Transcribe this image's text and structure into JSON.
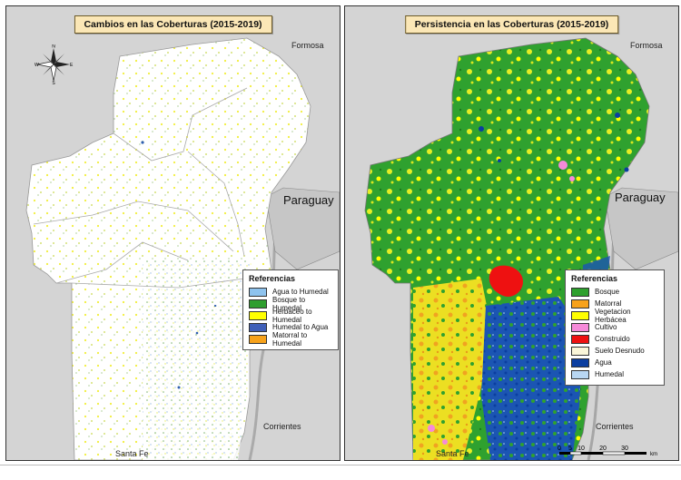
{
  "left_map": {
    "title": "Cambios en las Coberturas (2015-2019)",
    "places": {
      "formosa": "Formosa",
      "paraguay": "Paraguay",
      "corrientes": "Corrientes",
      "santa_fe": "Santa Fe"
    },
    "compass": {
      "n": "N",
      "s": "S",
      "e": "E",
      "w": "W"
    },
    "legend": {
      "title": "Referencias",
      "items": [
        {
          "label": "Agua to Humedal",
          "color": "#8ec3ee"
        },
        {
          "label": "Bosque to Humedal",
          "color": "#2e9e2e"
        },
        {
          "label": "Herbaceo to Humedal",
          "color": "#ffff00"
        },
        {
          "label": "Humedal to Agua",
          "color": "#4060b8"
        },
        {
          "label": "Matorral to Humedal",
          "color": "#f7a21b"
        }
      ]
    }
  },
  "right_map": {
    "title": "Persistencia en las Coberturas (2015-2019)",
    "places": {
      "formosa": "Formosa",
      "paraguay": "Paraguay",
      "corrientes": "Corrientes",
      "santa_fe": "Santa Fe"
    },
    "legend": {
      "title": "Referencias",
      "items": [
        {
          "label": "Bosque",
          "color": "#2ea02e"
        },
        {
          "label": "Matorral",
          "color": "#f7a21b"
        },
        {
          "label": "Vegetacion Herbácea",
          "color": "#ffff00"
        },
        {
          "label": "Cultivo",
          "color": "#f58ad9"
        },
        {
          "label": "Construido",
          "color": "#ee1111"
        },
        {
          "label": "Suelo Desnudo",
          "color": "#fbf6d8"
        },
        {
          "label": "Agua",
          "color": "#0b3ea0"
        },
        {
          "label": "Humedal",
          "color": "#b8d6f2"
        }
      ]
    },
    "scale": {
      "ticks": [
        "0",
        "5",
        "10",
        "20",
        "30"
      ],
      "unit": "km"
    }
  }
}
